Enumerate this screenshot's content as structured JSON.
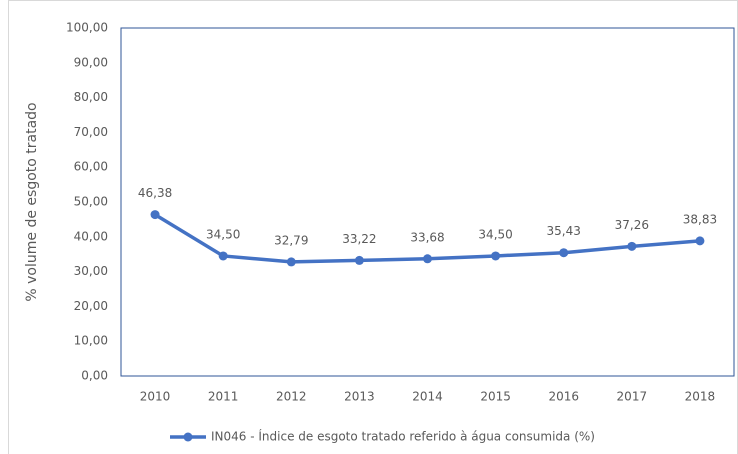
{
  "chart_data": {
    "type": "line",
    "y_label": "% volume de esgoto tratado",
    "categories": [
      "2010",
      "2011",
      "2012",
      "2013",
      "2014",
      "2015",
      "2016",
      "2017",
      "2018"
    ],
    "series": [
      {
        "name": "IN046 - Índice de esgoto tratado referido à água consumida (%)",
        "color": "#4472c4",
        "values": [
          46.38,
          34.5,
          32.79,
          33.22,
          33.68,
          34.5,
          35.43,
          37.26,
          38.83
        ],
        "value_labels": [
          "46,38",
          "34,50",
          "32,79",
          "33,22",
          "33,68",
          "34,50",
          "35,43",
          "37,26",
          "38,83"
        ]
      }
    ],
    "ylim": [
      0,
      100
    ],
    "yticks": [
      {
        "value": 0,
        "label": "0,00"
      },
      {
        "value": 10,
        "label": "10,00"
      },
      {
        "value": 20,
        "label": "20,00"
      },
      {
        "value": 30,
        "label": "30,00"
      },
      {
        "value": 40,
        "label": "40,00"
      },
      {
        "value": 50,
        "label": "50,00"
      },
      {
        "value": 60,
        "label": "60,00"
      },
      {
        "value": 70,
        "label": "70,00"
      },
      {
        "value": 80,
        "label": "80,00"
      },
      {
        "value": 90,
        "label": "90,00"
      },
      {
        "value": 100,
        "label": "100,00"
      }
    ],
    "grid": false,
    "legend": "bottom"
  }
}
